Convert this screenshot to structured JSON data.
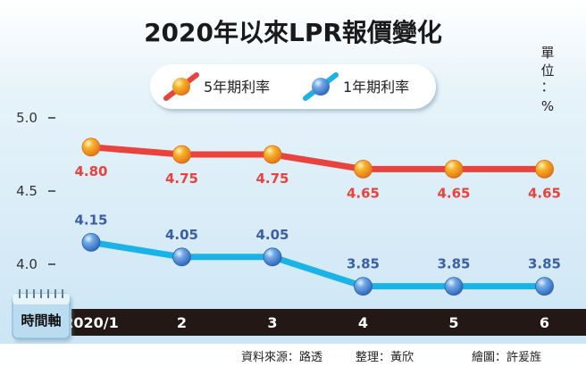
{
  "chart_data": {
    "type": "line",
    "title": "2020年以來LPR報價變化",
    "unit": "單位：%",
    "unit_chars": [
      "單",
      "位",
      "：",
      "%"
    ],
    "categories": [
      "2020/1",
      "2",
      "3",
      "4",
      "5",
      "6"
    ],
    "series": [
      {
        "name": "5年期利率",
        "values": [
          4.8,
          4.75,
          4.75,
          4.65,
          4.65,
          4.65
        ],
        "labels": [
          "4.80",
          "4.75",
          "4.75",
          "4.65",
          "4.65",
          "4.65"
        ],
        "color": "#e8433c",
        "marker": "#f29a1f",
        "label_color": "#e8433c"
      },
      {
        "name": "1年期利率",
        "values": [
          4.15,
          4.05,
          4.05,
          3.85,
          3.85,
          3.85
        ],
        "labels": [
          "4.15",
          "4.05",
          "4.05",
          "3.85",
          "3.85",
          "3.85"
        ],
        "color": "#1ab3e8",
        "marker": "#3a7fd0",
        "label_color": "#3a5ea8"
      }
    ],
    "yticks": [
      "5.0",
      "4.5",
      "4.0"
    ],
    "ytick_values": [
      5.0,
      4.5,
      4.0
    ],
    "ylim": [
      3.72,
      5.15
    ],
    "xaxis_badge": "時間軸",
    "grid": false,
    "legend_position": "top-center"
  },
  "credits": {
    "source": "資料來源：路透",
    "editor": "整理：黃欣",
    "illustrator": "繪圖：許爰旌"
  },
  "colors": {
    "background": "#ffffff",
    "plot_bg": "#d9ecf7",
    "axis_bar": "#231815",
    "legend_bg": "#ffffff",
    "badge_bg": "#b9dcf0"
  }
}
